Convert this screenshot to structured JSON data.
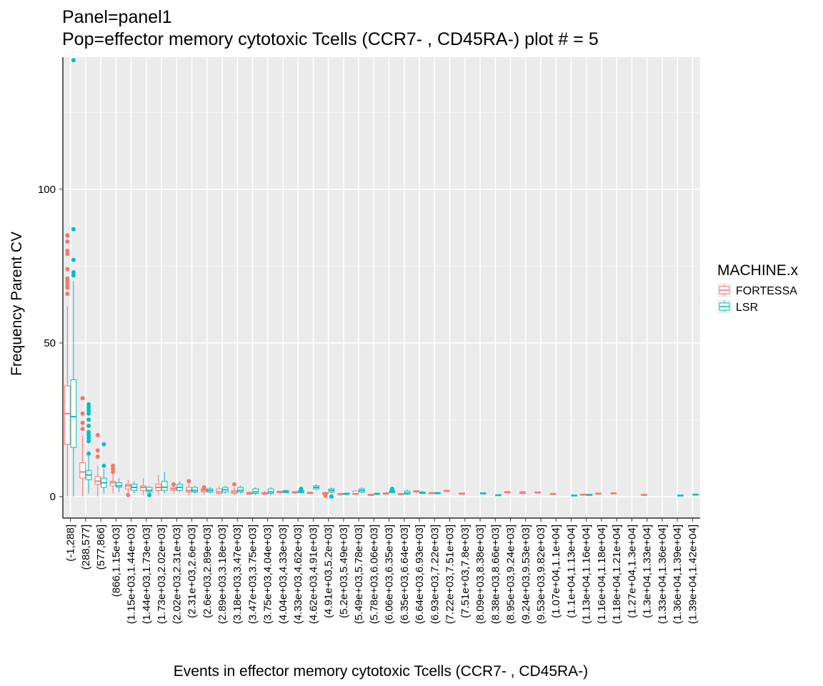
{
  "chart_data": {
    "type": "box",
    "title_lines": [
      "Panel=panel1",
      "Pop=effector memory cytotoxic Tcells (CCR7- , CD45RA-) plot # = 5"
    ],
    "xlabel": "Events in effector memory cytotoxic Tcells (CCR7- , CD45RA-)",
    "ylabel": "Frequency Parent CV",
    "ylim": [
      -7,
      143
    ],
    "yticks": [
      0,
      50,
      100
    ],
    "grid": true,
    "legend": {
      "title": "MACHINE.x",
      "placement": "right",
      "entries": [
        {
          "name": "FORTESSA",
          "color": "#F8766D"
        },
        {
          "name": "LSR",
          "color": "#00BFC4"
        }
      ]
    },
    "categories": [
      "(-1,288]",
      "(288,577]",
      "(577,866]",
      "(866,1.15e+03]",
      "(1.15e+03,1.44e+03]",
      "(1.44e+03,1.73e+03]",
      "(1.73e+03,2.02e+03]",
      "(2.02e+03,2.31e+03]",
      "(2.31e+03,2.6e+03]",
      "(2.6e+03,2.89e+03]",
      "(2.89e+03,3.18e+03]",
      "(3.18e+03,3.47e+03]",
      "(3.47e+03,3.75e+03]",
      "(3.75e+03,4.04e+03]",
      "(4.04e+03,4.33e+03]",
      "(4.33e+03,4.62e+03]",
      "(4.62e+03,4.91e+03]",
      "(4.91e+03,5.2e+03]",
      "(5.2e+03,5.49e+03]",
      "(5.49e+03,5.78e+03]",
      "(5.78e+03,6.06e+03]",
      "(6.06e+03,6.35e+03]",
      "(6.35e+03,6.64e+03]",
      "(6.64e+03,6.93e+03]",
      "(6.93e+03,7.22e+03]",
      "(7.22e+03,7.51e+03]",
      "(7.51e+03,7.8e+03]",
      "(8.09e+03,8.38e+03]",
      "(8.38e+03,8.66e+03]",
      "(8.95e+03,9.24e+03]",
      "(9.24e+03,9.53e+03]",
      "(9.53e+03,9.82e+03]",
      "(1.07e+04,1.1e+04]",
      "(1.1e+04,1.13e+04]",
      "(1.13e+04,1.16e+04]",
      "(1.16e+04,1.18e+04]",
      "(1.18e+04,1.21e+04]",
      "(1.27e+04,1.3e+04]",
      "(1.3e+04,1.33e+04]",
      "(1.33e+04,1.36e+04]",
      "(1.36e+04,1.39e+04]",
      "(1.39e+04,1.42e+04]"
    ],
    "series": [
      {
        "name": "FORTESSA",
        "color": "#F8766D",
        "boxes": [
          {
            "cat": 0,
            "min": 0,
            "q1": 17,
            "median": 27,
            "q3": 36,
            "max": 62,
            "outliers": [
              66,
              68,
              69,
              70,
              71,
              74,
              79,
              80,
              83,
              85
            ]
          },
          {
            "cat": 1,
            "min": 0,
            "q1": 6,
            "median": 8,
            "q3": 11,
            "max": 20,
            "outliers": [
              22,
              24,
              27,
              32
            ]
          },
          {
            "cat": 2,
            "min": 0,
            "q1": 4,
            "median": 5,
            "q3": 6.5,
            "max": 10,
            "outliers": [
              13,
              15,
              20
            ]
          },
          {
            "cat": 3,
            "min": 1,
            "q1": 3.5,
            "median": 4.5,
            "q3": 5,
            "max": 7.5,
            "outliers": [
              8,
              9,
              10
            ]
          },
          {
            "cat": 4,
            "min": 1,
            "q1": 2.5,
            "median": 3.5,
            "q3": 4,
            "max": 5.5,
            "outliers": [
              0.5
            ]
          },
          {
            "cat": 5,
            "min": 0.5,
            "q1": 2,
            "median": 3,
            "q3": 3.5,
            "max": 6,
            "outliers": []
          },
          {
            "cat": 6,
            "min": 0.5,
            "q1": 2,
            "median": 3,
            "q3": 4,
            "max": 7,
            "outliers": []
          },
          {
            "cat": 7,
            "min": 1,
            "q1": 2,
            "median": 2.5,
            "q3": 3,
            "max": 4,
            "outliers": [
              4
            ]
          },
          {
            "cat": 8,
            "min": 0.5,
            "q1": 1.5,
            "median": 2,
            "q3": 3,
            "max": 4,
            "outliers": [
              5
            ]
          },
          {
            "cat": 9,
            "min": 0.5,
            "q1": 1.5,
            "median": 2,
            "q3": 2.5,
            "max": 3.5,
            "outliers": [
              3,
              2.5
            ]
          },
          {
            "cat": 10,
            "min": 0.5,
            "q1": 1,
            "median": 1.5,
            "q3": 2.5,
            "max": 3.5,
            "outliers": []
          },
          {
            "cat": 11,
            "min": 0.5,
            "q1": 1,
            "median": 1.5,
            "q3": 2,
            "max": 3,
            "outliers": [
              4
            ]
          },
          {
            "cat": 12,
            "min": 0.5,
            "q1": 0.8,
            "median": 1,
            "q3": 1.3,
            "max": 1.8,
            "outliers": []
          },
          {
            "cat": 13,
            "min": 0.5,
            "q1": 0.8,
            "median": 1,
            "q3": 1.3,
            "max": 1.8,
            "outliers": []
          },
          {
            "cat": 14,
            "min": 1,
            "q1": 1.3,
            "median": 1.5,
            "q3": 1.7,
            "max": 2,
            "outliers": []
          },
          {
            "cat": 15,
            "min": 1,
            "q1": 1.2,
            "median": 1.4,
            "q3": 1.6,
            "max": 1.8,
            "outliers": []
          },
          {
            "cat": 16,
            "min": 0.8,
            "q1": 1,
            "median": 1.2,
            "q3": 1.4,
            "max": 1.6,
            "outliers": []
          },
          {
            "cat": 17,
            "min": 0.5,
            "q1": 0.8,
            "median": 1,
            "q3": 1.3,
            "max": 1.6,
            "outliers": [
              0.3
            ]
          },
          {
            "cat": 18,
            "min": 0.5,
            "q1": 0.7,
            "median": 0.8,
            "q3": 1,
            "max": 1.2,
            "outliers": []
          },
          {
            "cat": 19,
            "min": 0.5,
            "q1": 0.7,
            "median": 0.9,
            "q3": 1.8,
            "max": 2,
            "outliers": []
          },
          {
            "cat": 20,
            "min": 0.4,
            "q1": 0.5,
            "median": 0.6,
            "q3": 0.7,
            "max": 0.8,
            "outliers": []
          },
          {
            "cat": 21,
            "min": 0.6,
            "q1": 0.8,
            "median": 1,
            "q3": 1.2,
            "max": 1.4,
            "outliers": []
          },
          {
            "cat": 22,
            "min": 0.5,
            "q1": 0.7,
            "median": 0.8,
            "q3": 1,
            "max": 1.2,
            "outliers": []
          },
          {
            "cat": 23,
            "min": 1.2,
            "q1": 1.5,
            "median": 1.7,
            "q3": 1.9,
            "max": 2.1,
            "outliers": []
          },
          {
            "cat": 24,
            "min": 0.8,
            "q1": 1,
            "median": 1.1,
            "q3": 1.3,
            "max": 1.5,
            "outliers": []
          },
          {
            "cat": 25,
            "min": 1.6,
            "q1": 1.8,
            "median": 1.9,
            "q3": 2,
            "max": 2.1,
            "outliers": []
          },
          {
            "cat": 26,
            "min": 0.8,
            "q1": 0.9,
            "median": 1,
            "q3": 1.1,
            "max": 1.2,
            "outliers": []
          },
          {
            "cat": 29,
            "min": 1.3,
            "q1": 1.4,
            "median": 1.5,
            "q3": 1.6,
            "max": 1.7,
            "outliers": []
          },
          {
            "cat": 30,
            "min": 0.8,
            "q1": 1,
            "median": 1.2,
            "q3": 1.6,
            "max": 1.8,
            "outliers": []
          },
          {
            "cat": 31,
            "min": 1.2,
            "q1": 1.3,
            "median": 1.4,
            "q3": 1.5,
            "max": 1.6,
            "outliers": []
          },
          {
            "cat": 32,
            "min": 0.7,
            "q1": 0.8,
            "median": 0.9,
            "q3": 1,
            "max": 1.1,
            "outliers": []
          },
          {
            "cat": 34,
            "min": 0.5,
            "q1": 0.6,
            "median": 0.7,
            "q3": 0.8,
            "max": 0.9,
            "outliers": []
          },
          {
            "cat": 35,
            "min": 0.8,
            "q1": 0.9,
            "median": 1,
            "q3": 1.1,
            "max": 1.2,
            "outliers": []
          },
          {
            "cat": 36,
            "min": 0.9,
            "q1": 1,
            "median": 1.1,
            "q3": 1.2,
            "max": 1.3,
            "outliers": []
          },
          {
            "cat": 38,
            "min": 0.4,
            "q1": 0.5,
            "median": 0.6,
            "q3": 0.7,
            "max": 0.8,
            "outliers": []
          }
        ]
      },
      {
        "name": "LSR",
        "color": "#00BFC4",
        "boxes": [
          {
            "cat": 0,
            "min": 0,
            "q1": 16,
            "median": 26,
            "q3": 38,
            "max": 70,
            "outliers": [
              72,
              73,
              77,
              87,
              142
            ]
          },
          {
            "cat": 1,
            "min": 1,
            "q1": 5.5,
            "median": 7,
            "q3": 8.5,
            "max": 14,
            "outliers": [
              18,
              19,
              20,
              21,
              23,
              25,
              27,
              28,
              29,
              30,
              14
            ]
          },
          {
            "cat": 2,
            "min": 1,
            "q1": 3,
            "median": 4.5,
            "q3": 6,
            "max": 9,
            "outliers": [
              10,
              17
            ]
          },
          {
            "cat": 3,
            "min": 1.5,
            "q1": 3,
            "median": 3.5,
            "q3": 4.5,
            "max": 6,
            "outliers": []
          },
          {
            "cat": 4,
            "min": 1,
            "q1": 2,
            "median": 3,
            "q3": 4,
            "max": 5,
            "outliers": []
          },
          {
            "cat": 5,
            "min": 0.5,
            "q1": 1.5,
            "median": 2,
            "q3": 3,
            "max": 3.5,
            "outliers": [
              0.5
            ]
          },
          {
            "cat": 6,
            "min": 1,
            "q1": 2,
            "median": 3,
            "q3": 5,
            "max": 8,
            "outliers": []
          },
          {
            "cat": 7,
            "min": 1.5,
            "q1": 2,
            "median": 3,
            "q3": 4,
            "max": 5,
            "outliers": []
          },
          {
            "cat": 8,
            "min": 1,
            "q1": 1.5,
            "median": 2,
            "q3": 3,
            "max": 3.5,
            "outliers": []
          },
          {
            "cat": 9,
            "min": 1,
            "q1": 1.5,
            "median": 2,
            "q3": 2.5,
            "max": 3,
            "outliers": []
          },
          {
            "cat": 10,
            "min": 1,
            "q1": 1.5,
            "median": 2.2,
            "q3": 3,
            "max": 3.5,
            "outliers": []
          },
          {
            "cat": 11,
            "min": 1,
            "q1": 1.5,
            "median": 2,
            "q3": 3,
            "max": 3.5,
            "outliers": []
          },
          {
            "cat": 12,
            "min": 0.5,
            "q1": 1,
            "median": 1.5,
            "q3": 2.5,
            "max": 3,
            "outliers": []
          },
          {
            "cat": 13,
            "min": 0.5,
            "q1": 1,
            "median": 1.5,
            "q3": 2.5,
            "max": 3,
            "outliers": []
          },
          {
            "cat": 14,
            "min": 1,
            "q1": 1.3,
            "median": 1.6,
            "q3": 2,
            "max": 2.3,
            "outliers": []
          },
          {
            "cat": 15,
            "min": 1,
            "q1": 1.3,
            "median": 1.6,
            "q3": 2,
            "max": 2.3,
            "outliers": [
              2.5
            ]
          },
          {
            "cat": 16,
            "min": 2,
            "q1": 2.5,
            "median": 3,
            "q3": 3.5,
            "max": 4,
            "outliers": []
          },
          {
            "cat": 17,
            "min": 1,
            "q1": 1.5,
            "median": 2,
            "q3": 2.5,
            "max": 3,
            "outliers": [
              0
            ]
          },
          {
            "cat": 18,
            "min": 0.5,
            "q1": 0.7,
            "median": 0.9,
            "q3": 1.1,
            "max": 1.3,
            "outliers": []
          },
          {
            "cat": 19,
            "min": 1,
            "q1": 1.5,
            "median": 2,
            "q3": 2.5,
            "max": 3,
            "outliers": []
          },
          {
            "cat": 20,
            "min": 0.5,
            "q1": 0.7,
            "median": 0.9,
            "q3": 1.1,
            "max": 1.3,
            "outliers": []
          },
          {
            "cat": 21,
            "min": 1,
            "q1": 1.3,
            "median": 1.6,
            "q3": 2,
            "max": 2.3,
            "outliers": [
              2.5
            ]
          },
          {
            "cat": 22,
            "min": 0.5,
            "q1": 0.8,
            "median": 1.2,
            "q3": 1.8,
            "max": 2.2,
            "outliers": []
          },
          {
            "cat": 23,
            "min": 0.8,
            "q1": 1,
            "median": 1.2,
            "q3": 1.5,
            "max": 1.8,
            "outliers": []
          },
          {
            "cat": 24,
            "min": 0.8,
            "q1": 0.9,
            "median": 1.1,
            "q3": 1.3,
            "max": 1.5,
            "outliers": []
          },
          {
            "cat": 27,
            "min": 0.9,
            "q1": 1,
            "median": 1.1,
            "q3": 1.2,
            "max": 1.3,
            "outliers": []
          },
          {
            "cat": 28,
            "min": 0.3,
            "q1": 0.4,
            "median": 0.5,
            "q3": 0.6,
            "max": 0.7,
            "outliers": []
          },
          {
            "cat": 33,
            "min": 0.2,
            "q1": 0.3,
            "median": 0.4,
            "q3": 0.5,
            "max": 0.6,
            "outliers": []
          },
          {
            "cat": 34,
            "min": 0.4,
            "q1": 0.5,
            "median": 0.6,
            "q3": 0.7,
            "max": 0.8,
            "outliers": []
          },
          {
            "cat": 40,
            "min": 0.2,
            "q1": 0.3,
            "median": 0.4,
            "q3": 0.5,
            "max": 0.6,
            "outliers": []
          },
          {
            "cat": 41,
            "min": 0.5,
            "q1": 0.6,
            "median": 0.7,
            "q3": 0.8,
            "max": 0.9,
            "outliers": []
          }
        ]
      }
    ]
  }
}
